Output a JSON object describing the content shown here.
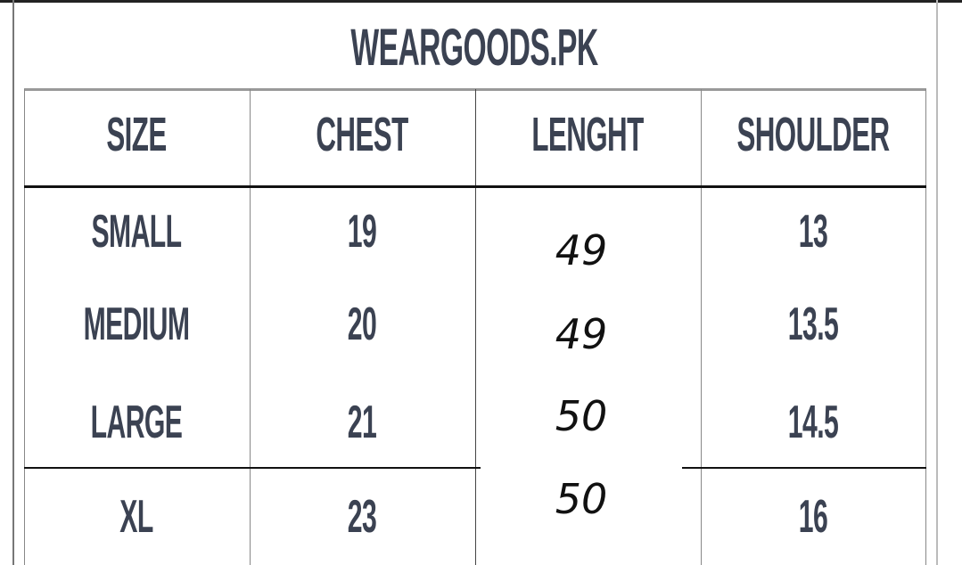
{
  "title": "WEARGOODS.PK",
  "headers": [
    "SIZE",
    "CHEST",
    "LENGHT",
    "SHOULDER"
  ],
  "rows": [
    {
      "size": "SMALL",
      "chest": "19",
      "length": "49",
      "shoulder": "13"
    },
    {
      "size": "MEDIUM",
      "chest": "20",
      "length": "49",
      "shoulder": "13.5"
    },
    {
      "size": "LARGE",
      "chest": "21",
      "length": "50",
      "shoulder": "14.5"
    },
    {
      "size": "XL",
      "chest": "23",
      "length": "50",
      "shoulder": "16"
    }
  ]
}
